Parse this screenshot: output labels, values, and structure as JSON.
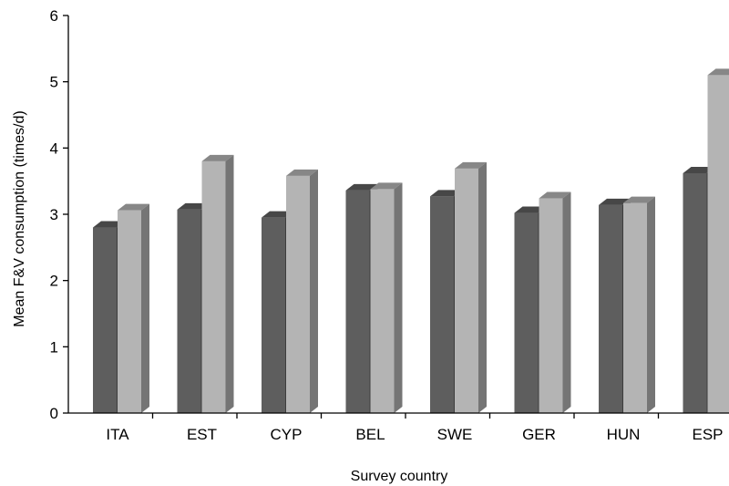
{
  "chart_data": {
    "type": "bar",
    "categories": [
      "ITA",
      "EST",
      "CYP",
      "BEL",
      "SWE",
      "GER",
      "HUN",
      "ESP"
    ],
    "series": [
      {
        "values": [
          2.8,
          3.07,
          2.95,
          3.36,
          3.27,
          3.02,
          3.14,
          3.62
        ]
      },
      {
        "values": [
          3.06,
          3.8,
          3.58,
          3.38,
          3.69,
          3.24,
          3.17,
          5.1
        ]
      }
    ],
    "colors": [
      "#5e5e5e",
      "#b4b4b4"
    ],
    "xlabel": "Survey country",
    "ylabel": "Mean F&V consumption (times/d)",
    "ylim": [
      0,
      6
    ],
    "yticks": [
      0,
      1,
      2,
      3,
      4,
      5,
      6
    ],
    "grid": false,
    "style": "3d-clustered-column"
  }
}
